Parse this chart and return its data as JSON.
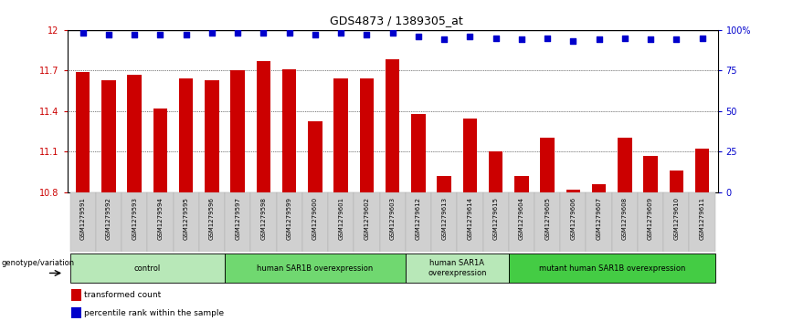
{
  "title": "GDS4873 / 1389305_at",
  "samples": [
    "GSM1279591",
    "GSM1279592",
    "GSM1279593",
    "GSM1279594",
    "GSM1279595",
    "GSM1279596",
    "GSM1279597",
    "GSM1279598",
    "GSM1279599",
    "GSM1279600",
    "GSM1279601",
    "GSM1279602",
    "GSM1279603",
    "GSM1279612",
    "GSM1279613",
    "GSM1279614",
    "GSM1279615",
    "GSM1279604",
    "GSM1279605",
    "GSM1279606",
    "GSM1279607",
    "GSM1279608",
    "GSM1279609",
    "GSM1279610",
    "GSM1279611"
  ],
  "bar_values": [
    11.69,
    11.63,
    11.67,
    11.42,
    11.64,
    11.63,
    11.7,
    11.77,
    11.71,
    11.32,
    11.64,
    11.64,
    11.78,
    11.38,
    10.92,
    11.34,
    11.1,
    10.92,
    11.2,
    10.82,
    10.86,
    11.2,
    11.07,
    10.96,
    11.12
  ],
  "percentile_values": [
    98,
    97,
    97,
    97,
    97,
    98,
    98,
    98,
    98,
    97,
    98,
    97,
    98,
    96,
    94,
    96,
    95,
    94,
    95,
    93,
    94,
    95,
    94,
    94,
    95
  ],
  "bar_color": "#cc0000",
  "dot_color": "#0000cc",
  "ymin": 10.8,
  "ymax": 12.0,
  "yticks": [
    10.8,
    11.1,
    11.4,
    11.7,
    12.0
  ],
  "ytick_labels": [
    "10.8",
    "11.1",
    "11.4",
    "11.7",
    "12"
  ],
  "y2ticks": [
    0,
    25,
    50,
    75,
    100
  ],
  "y2tick_labels": [
    "0",
    "25",
    "50",
    "75",
    "100%"
  ],
  "groups": [
    {
      "label": "control",
      "start": 0,
      "end": 5,
      "color": "#b8e8b8"
    },
    {
      "label": "human SAR1B overexpression",
      "start": 6,
      "end": 12,
      "color": "#70d870"
    },
    {
      "label": "human SAR1A\noverexpression",
      "start": 13,
      "end": 16,
      "color": "#b8e8b8"
    },
    {
      "label": "mutant human SAR1B overexpression",
      "start": 17,
      "end": 24,
      "color": "#44cc44"
    }
  ],
  "legend_items": [
    {
      "color": "#cc0000",
      "label": "transformed count"
    },
    {
      "color": "#0000cc",
      "label": "percentile rank within the sample"
    }
  ],
  "genotype_label": "genotype/variation",
  "xticklabel_bg": "#d0d0d0",
  "grid_lines": [
    11.1,
    11.4,
    11.7
  ]
}
